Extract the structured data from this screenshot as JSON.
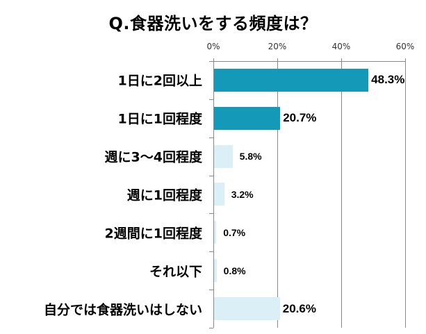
{
  "title": "Q.食器洗いをする頻度は？",
  "colors": {
    "bar_dark": "#1499b8",
    "bar_light": "#dbeff6",
    "grid": "#888888"
  },
  "axis": {
    "ticks": [
      "0%",
      "20%",
      "40%",
      "60%"
    ]
  },
  "chart_data": {
    "type": "bar",
    "orientation": "horizontal",
    "title": "Q.食器洗いをする頻度は？",
    "categories": [
      "1日に2回以上",
      "1日に1回程度",
      "週に3〜4回程度",
      "週に1回程度",
      "2週間に1回程度",
      "それ以下",
      "自分では食器洗いはしない"
    ],
    "values": [
      48.3,
      20.7,
      5.8,
      3.2,
      0.7,
      0.8,
      20.6
    ],
    "value_labels": [
      "48.3%",
      "20.7%",
      "5.8%",
      "3.2%",
      "0.7%",
      "0.8%",
      "20.6%"
    ],
    "bar_colors": [
      "#1499b8",
      "#1499b8",
      "#dbeff6",
      "#dbeff6",
      "#dbeff6",
      "#dbeff6",
      "#dbeff6"
    ],
    "xlabel": "",
    "ylabel": "",
    "xlim": [
      0,
      60
    ],
    "x_ticks": [
      "0%",
      "20%",
      "40%",
      "60%"
    ],
    "x_axis_position": "top",
    "grid": true,
    "legend": false
  }
}
